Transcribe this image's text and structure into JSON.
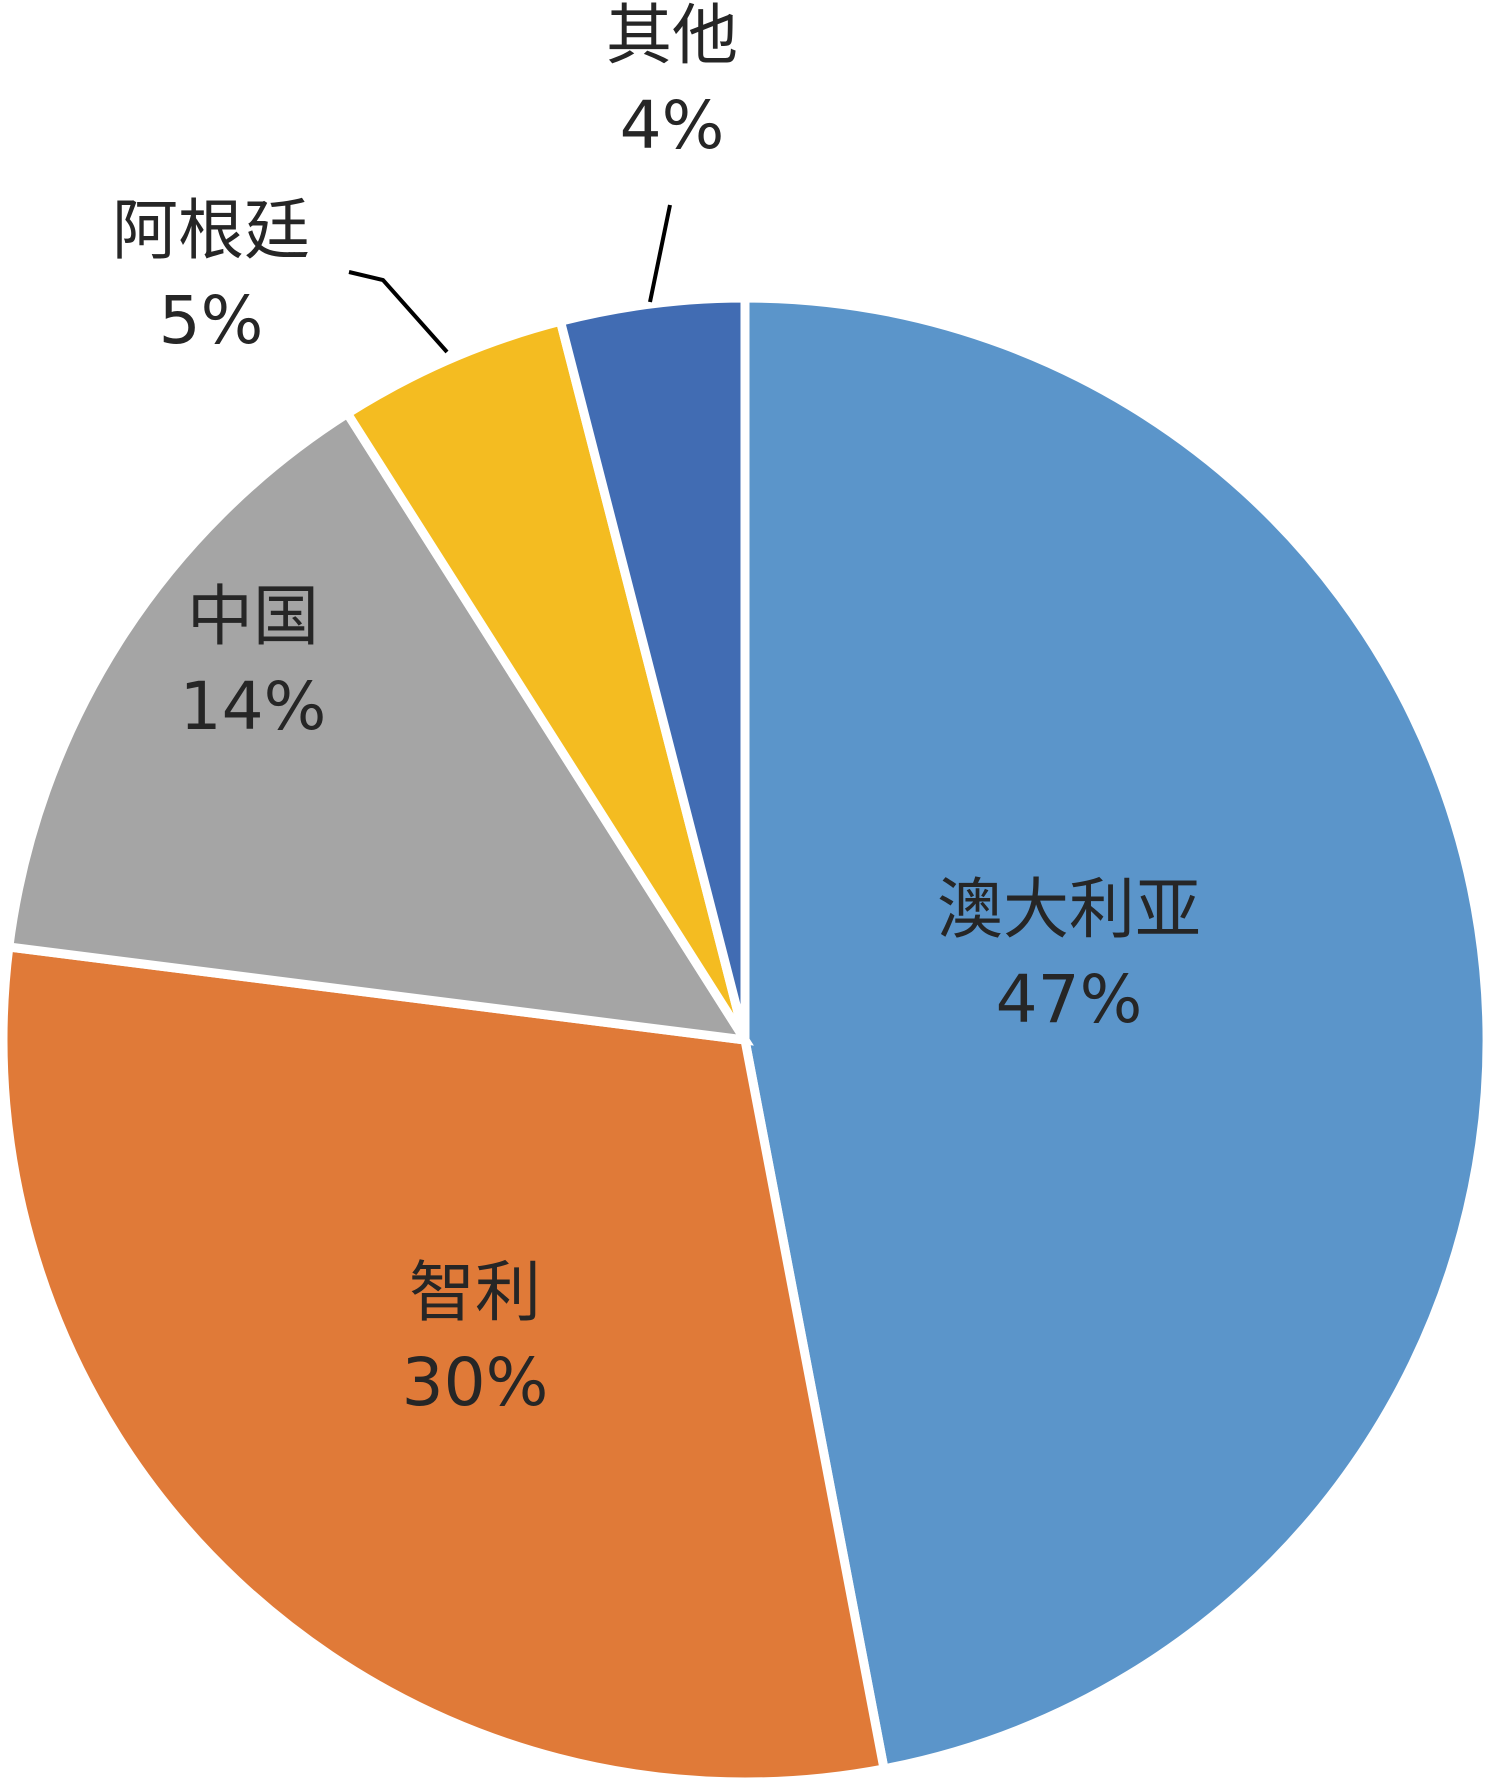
{
  "chart_data": {
    "type": "pie",
    "title": "",
    "start_angle_deg": 0,
    "direction": "clockwise",
    "slices": [
      {
        "label": "澳大利亚",
        "value": 47,
        "value_label": "47%",
        "color": "#5B95CA"
      },
      {
        "label": "智利",
        "value": 30,
        "value_label": "30%",
        "color": "#E07A38"
      },
      {
        "label": "中国",
        "value": 14,
        "value_label": "14%",
        "color": "#A5A5A5"
      },
      {
        "label": "阿根廷",
        "value": 5,
        "value_label": "5%",
        "color": "#F4BC21"
      },
      {
        "label": "其他",
        "value": 4,
        "value_label": "4%",
        "color": "#416CB3"
      }
    ],
    "legend": "none",
    "data_labels": "category and percentage"
  }
}
